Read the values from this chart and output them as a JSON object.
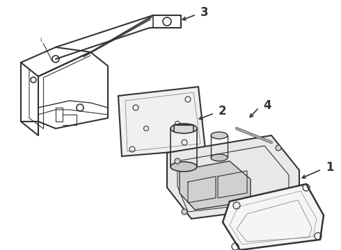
{
  "bg_color": "#ffffff",
  "line_color": "#333333",
  "line_width": 1.2
}
